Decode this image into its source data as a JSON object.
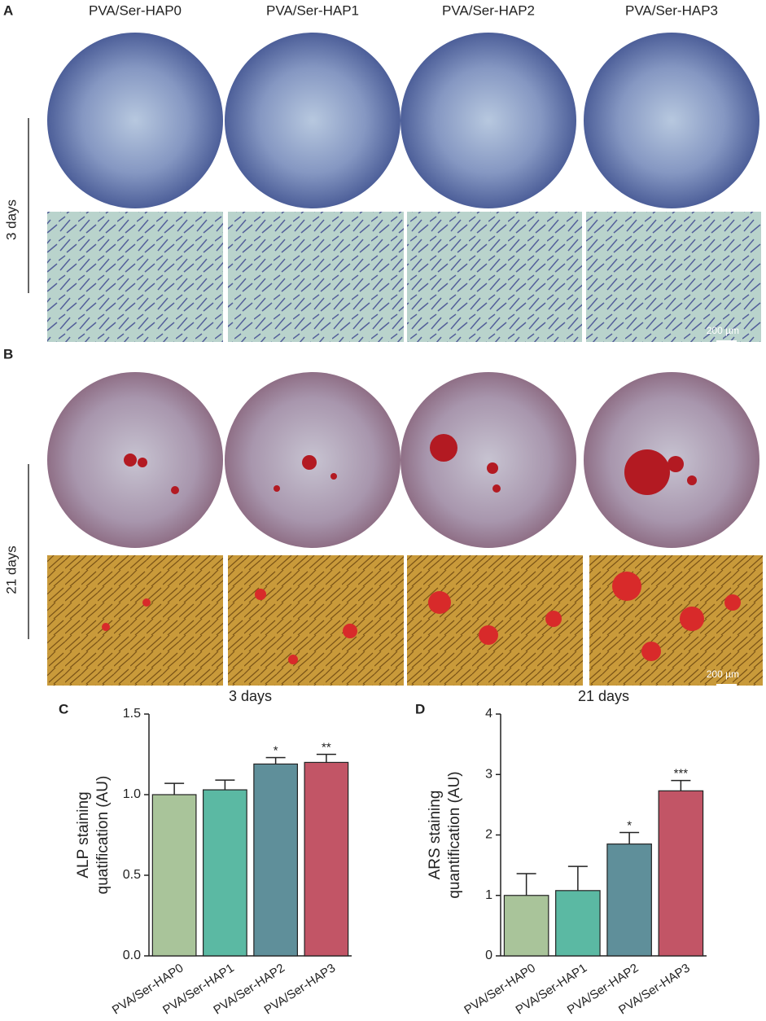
{
  "panels": {
    "labels": [
      "A",
      "B",
      "C",
      "D"
    ],
    "columns": [
      "PVA/Ser-HAP0",
      "PVA/Ser-HAP1",
      "PVA/Ser-HAP2",
      "PVA/Ser-HAP3"
    ],
    "rows": [
      "3 days",
      "21 days"
    ],
    "scale_bars": [
      "200 µm",
      "200 µm"
    ]
  },
  "chart_data": [
    {
      "type": "bar",
      "title": "3 days",
      "ylabel": [
        "ALP staining",
        "quatification (AU)"
      ],
      "categories": [
        "PVA/Ser-HAP0",
        "PVA/Ser-HAP1",
        "PVA/Ser-HAP2",
        "PVA/Ser-HAP3"
      ],
      "values": [
        1.0,
        1.03,
        1.19,
        1.2
      ],
      "errors": [
        0.07,
        0.06,
        0.04,
        0.05
      ],
      "colors": [
        "#a9c49a",
        "#5bb9a3",
        "#5f8f9a",
        "#c25566"
      ],
      "annotations": [
        {
          "index": 2,
          "text": "*"
        },
        {
          "index": 3,
          "text": "**"
        }
      ],
      "ylim": [
        0,
        1.5
      ],
      "yticks": [
        {
          "value": 0,
          "label": "0.0"
        },
        {
          "value": 0.5,
          "label": "0.5"
        },
        {
          "value": 1,
          "label": "1.0"
        },
        {
          "value": 1.5,
          "label": "1.5"
        }
      ]
    },
    {
      "type": "bar",
      "title": "21 days",
      "ylabel": [
        "ARS staining",
        "quantification (AU)"
      ],
      "categories": [
        "PVA/Ser-HAP0",
        "PVA/Ser-HAP1",
        "PVA/Ser-HAP2",
        "PVA/Ser-HAP3"
      ],
      "values": [
        1.0,
        1.08,
        1.85,
        2.73
      ],
      "errors": [
        0.36,
        0.4,
        0.19,
        0.17
      ],
      "colors": [
        "#a9c49a",
        "#5bb9a3",
        "#5f8f9a",
        "#c25566"
      ],
      "annotations": [
        {
          "index": 2,
          "text": "*"
        },
        {
          "index": 3,
          "text": "***"
        }
      ],
      "ylim": [
        0,
        4
      ],
      "yticks": [
        0,
        1,
        2,
        3,
        4
      ]
    }
  ]
}
